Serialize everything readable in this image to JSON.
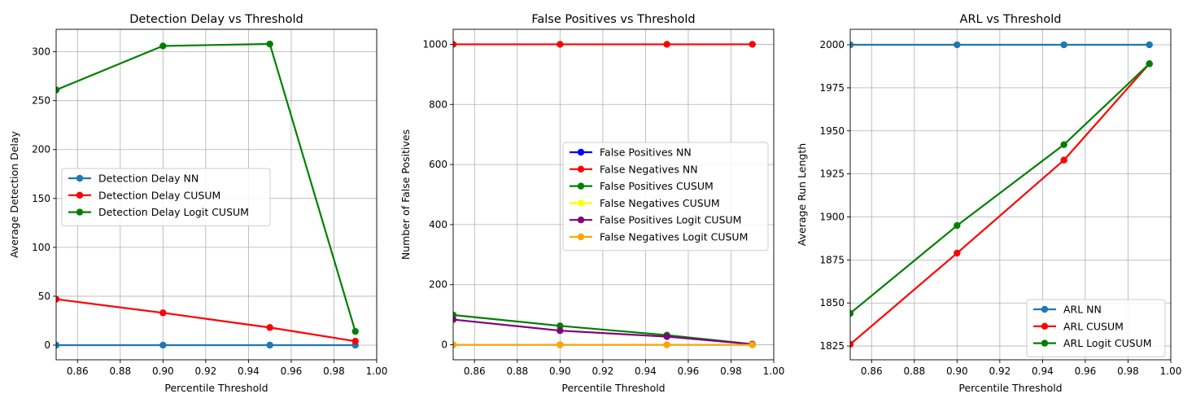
{
  "chart_data": [
    {
      "type": "line",
      "title": "Detection Delay vs Threshold",
      "xlabel": "Percentile Threshold",
      "ylabel": "Average Detection Delay",
      "xlim": [
        0.85,
        1.0
      ],
      "ylim": [
        -15,
        323
      ],
      "xticks": [
        0.86,
        0.88,
        0.9,
        0.92,
        0.94,
        0.96,
        0.98,
        1.0
      ],
      "xtick_labels": [
        "0.86",
        "0.88",
        "0.90",
        "0.92",
        "0.94",
        "0.96",
        "0.98",
        "1.00"
      ],
      "yticks": [
        0,
        50,
        100,
        150,
        200,
        250,
        300
      ],
      "ytick_labels": [
        "0",
        "50",
        "100",
        "150",
        "200",
        "250",
        "300"
      ],
      "grid": true,
      "legend_position": "center-left",
      "x": [
        0.85,
        0.9,
        0.95,
        0.99
      ],
      "series": [
        {
          "name": "Detection Delay NN",
          "color": "#1f77b4",
          "values": [
            0,
            0,
            0,
            0
          ]
        },
        {
          "name": "Detection Delay CUSUM",
          "color": "#ff0000",
          "values": [
            47,
            33,
            18,
            4
          ]
        },
        {
          "name": "Detection Delay Logit CUSUM",
          "color": "#008000",
          "values": [
            261,
            306,
            308,
            14
          ]
        }
      ]
    },
    {
      "type": "line",
      "title": "False Positives vs Threshold",
      "xlabel": "Percentile Threshold",
      "ylabel": "Number of False Positives",
      "xlim": [
        0.85,
        1.0
      ],
      "ylim": [
        -50,
        1050
      ],
      "xticks": [
        0.86,
        0.88,
        0.9,
        0.92,
        0.94,
        0.96,
        0.98,
        1.0
      ],
      "xtick_labels": [
        "0.86",
        "0.88",
        "0.90",
        "0.92",
        "0.94",
        "0.96",
        "0.98",
        "1.00"
      ],
      "yticks": [
        0,
        200,
        400,
        600,
        800,
        1000
      ],
      "ytick_labels": [
        "0",
        "200",
        "400",
        "600",
        "800",
        "1000"
      ],
      "grid": true,
      "legend_position": "center-right",
      "x": [
        0.85,
        0.9,
        0.95,
        0.99
      ],
      "series": [
        {
          "name": "False Positives NN",
          "color": "#0000ff",
          "values": [
            0,
            0,
            0,
            0
          ]
        },
        {
          "name": "False Negatives NN",
          "color": "#ff0000",
          "values": [
            1000,
            1000,
            1000,
            1000
          ]
        },
        {
          "name": "False Positives CUSUM",
          "color": "#008000",
          "values": [
            99,
            63,
            32,
            2
          ]
        },
        {
          "name": "False Negatives CUSUM",
          "color": "#ffff00",
          "values": [
            0,
            0,
            0,
            0
          ]
        },
        {
          "name": "False Positives Logit CUSUM",
          "color": "#800080",
          "values": [
            84,
            47,
            27,
            2
          ]
        },
        {
          "name": "False Negatives Logit CUSUM",
          "color": "#ffa500",
          "values": [
            0,
            0,
            0,
            0
          ]
        }
      ]
    },
    {
      "type": "line",
      "title": "ARL vs Threshold",
      "xlabel": "Percentile Threshold",
      "ylabel": "Average Run Length",
      "xlim": [
        0.85,
        1.0
      ],
      "ylim": [
        1817,
        2009
      ],
      "xticks": [
        0.86,
        0.88,
        0.9,
        0.92,
        0.94,
        0.96,
        0.98,
        1.0
      ],
      "xtick_labels": [
        "0.86",
        "0.88",
        "0.90",
        "0.92",
        "0.94",
        "0.96",
        "0.98",
        "1.00"
      ],
      "yticks": [
        1825,
        1850,
        1875,
        1900,
        1925,
        1950,
        1975,
        2000
      ],
      "ytick_labels": [
        "1825",
        "1850",
        "1875",
        "1900",
        "1925",
        "1950",
        "1975",
        "2000"
      ],
      "grid": true,
      "legend_position": "lower-right",
      "x": [
        0.85,
        0.9,
        0.95,
        0.99
      ],
      "series": [
        {
          "name": "ARL NN",
          "color": "#1f77b4",
          "values": [
            2000,
            2000,
            2000,
            2000
          ]
        },
        {
          "name": "ARL CUSUM",
          "color": "#ff0000",
          "values": [
            1826,
            1879,
            1933,
            1989
          ]
        },
        {
          "name": "ARL Logit CUSUM",
          "color": "#008000",
          "values": [
            1844,
            1895,
            1942,
            1989
          ]
        }
      ]
    }
  ]
}
